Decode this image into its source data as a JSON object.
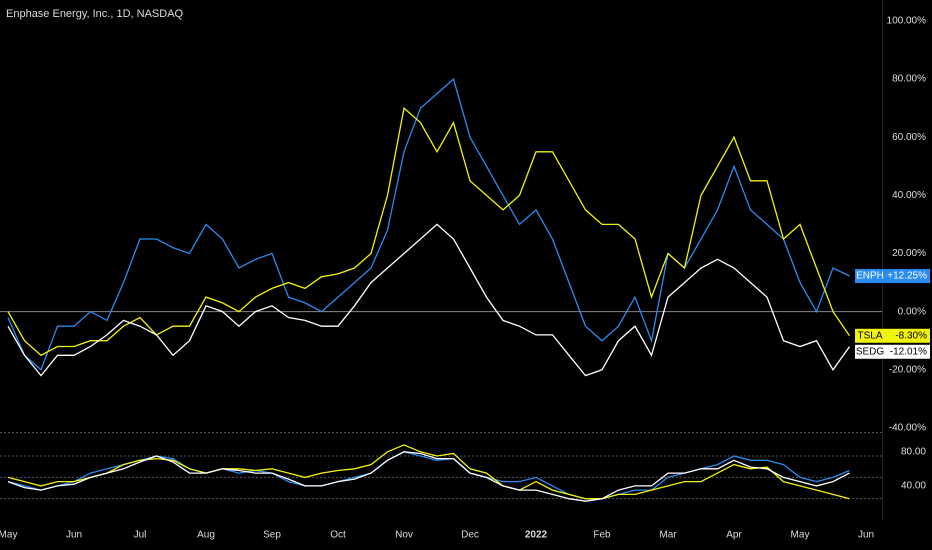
{
  "chart_data": [
    {
      "type": "line",
      "title": "Enphase Energy, Inc., 1D, NASDAQ",
      "categories": [
        "May",
        null,
        null,
        null,
        "Jun",
        null,
        null,
        null,
        "Jul",
        null,
        null,
        null,
        "Aug",
        null,
        null,
        null,
        "Sep",
        null,
        null,
        null,
        "Oct",
        null,
        null,
        null,
        "Nov",
        null,
        null,
        null,
        "Dec",
        null,
        null,
        null,
        "2022",
        null,
        null,
        null,
        "Feb",
        null,
        null,
        null,
        "Mar",
        null,
        null,
        null,
        "Apr",
        null,
        null,
        null,
        "May",
        null,
        null,
        null,
        "Jun"
      ],
      "series": [
        {
          "name": "ENPH",
          "color": "#2a8cf0",
          "values": [
            -2,
            -15,
            -20,
            -5,
            -5,
            0,
            -3,
            10,
            25,
            25,
            22,
            20,
            30,
            25,
            15,
            18,
            20,
            5,
            3,
            0,
            5,
            10,
            15,
            28,
            55,
            70,
            75,
            80,
            60,
            50,
            40,
            30,
            35,
            25,
            10,
            -5,
            -10,
            -5,
            5,
            -10,
            20,
            15,
            25,
            35,
            50,
            35,
            30,
            25,
            10,
            0,
            15,
            12.25,
            null
          ],
          "value_labels": [
            null,
            null,
            null,
            null,
            null,
            null,
            null,
            null,
            null,
            null,
            null,
            null,
            null,
            null,
            null,
            null,
            null,
            null,
            null,
            null,
            null,
            null,
            null,
            null,
            null,
            null,
            null,
            null,
            null,
            null,
            null,
            null,
            null,
            null,
            null,
            null,
            null,
            null,
            null,
            null,
            null,
            null,
            null,
            null,
            null,
            null,
            null,
            null,
            null,
            null,
            null,
            "+12.25%",
            null
          ]
        },
        {
          "name": "TSLA",
          "color": "#f2f20f",
          "values": [
            0,
            -10,
            -15,
            -12,
            -12,
            -10,
            -10,
            -5,
            -2,
            -8,
            -5,
            -5,
            5,
            3,
            0,
            5,
            8,
            10,
            8,
            12,
            13,
            15,
            20,
            40,
            70,
            65,
            55,
            65,
            45,
            40,
            35,
            40,
            55,
            55,
            45,
            35,
            30,
            30,
            25,
            5,
            20,
            15,
            40,
            50,
            60,
            45,
            45,
            25,
            30,
            15,
            0,
            -8.3,
            null
          ],
          "value_labels": [
            null,
            null,
            null,
            null,
            null,
            null,
            null,
            null,
            null,
            null,
            null,
            null,
            null,
            null,
            null,
            null,
            null,
            null,
            null,
            null,
            null,
            null,
            null,
            null,
            null,
            null,
            null,
            null,
            null,
            null,
            null,
            null,
            null,
            null,
            null,
            null,
            null,
            null,
            null,
            null,
            null,
            null,
            null,
            null,
            null,
            null,
            null,
            null,
            null,
            null,
            null,
            "-8.30%",
            null
          ]
        },
        {
          "name": "SEDG",
          "color": "#ffffff",
          "values": [
            -5,
            -15,
            -22,
            -15,
            -15,
            -12,
            -8,
            -3,
            -5,
            -8,
            -15,
            -10,
            2,
            0,
            -5,
            0,
            2,
            -2,
            -3,
            -5,
            -5,
            2,
            10,
            15,
            20,
            25,
            30,
            25,
            15,
            5,
            -3,
            -5,
            -8,
            -8,
            -15,
            -22,
            -20,
            -10,
            -5,
            -15,
            5,
            10,
            15,
            18,
            15,
            10,
            5,
            -10,
            -12,
            -10,
            -20,
            -12.01,
            null
          ],
          "value_labels": [
            null,
            null,
            null,
            null,
            null,
            null,
            null,
            null,
            null,
            null,
            null,
            null,
            null,
            null,
            null,
            null,
            null,
            null,
            null,
            null,
            null,
            null,
            null,
            null,
            null,
            null,
            null,
            null,
            null,
            null,
            null,
            null,
            null,
            null,
            null,
            null,
            null,
            null,
            null,
            null,
            null,
            null,
            null,
            null,
            null,
            null,
            null,
            null,
            null,
            null,
            null,
            "-12.01%",
            null
          ]
        }
      ],
      "ylim": [
        -41.4,
        107.2
      ],
      "yticks": [
        {
          "value": 100,
          "label": "100.00%"
        },
        {
          "value": 80,
          "label": "80.00%"
        },
        {
          "value": 60,
          "label": "60.00%"
        },
        {
          "value": 40,
          "label": "40.00%"
        },
        {
          "value": 20,
          "label": "20.00%"
        },
        {
          "value": 0,
          "label": "0.00%"
        },
        {
          "value": -20,
          "label": "-20.00%"
        },
        {
          "value": -40,
          "label": "-40.00%"
        }
      ],
      "hlines": [
        0
      ]
    },
    {
      "type": "line",
      "series": [
        {
          "color": "#2a8cf0",
          "values": [
            45,
            40,
            35,
            40,
            45,
            55,
            60,
            65,
            70,
            75,
            72,
            60,
            55,
            60,
            55,
            58,
            55,
            45,
            40,
            40,
            45,
            50,
            55,
            70,
            80,
            75,
            70,
            72,
            55,
            50,
            45,
            45,
            50,
            40,
            30,
            25,
            25,
            30,
            35,
            35,
            50,
            55,
            60,
            65,
            75,
            70,
            70,
            65,
            50,
            45,
            50,
            58
          ]
        },
        {
          "color": "#f2f20f",
          "values": [
            50,
            45,
            40,
            45,
            45,
            50,
            55,
            65,
            70,
            72,
            70,
            60,
            55,
            60,
            60,
            58,
            60,
            55,
            50,
            55,
            58,
            60,
            65,
            80,
            88,
            80,
            75,
            78,
            60,
            55,
            40,
            35,
            45,
            35,
            30,
            25,
            25,
            30,
            30,
            35,
            40,
            45,
            45,
            55,
            65,
            60,
            62,
            45,
            40,
            35,
            30,
            25
          ]
        },
        {
          "color": "#ffffff",
          "values": [
            45,
            38,
            35,
            40,
            42,
            50,
            55,
            60,
            68,
            75,
            68,
            55,
            55,
            60,
            58,
            55,
            55,
            48,
            40,
            40,
            45,
            48,
            55,
            70,
            80,
            78,
            72,
            72,
            55,
            50,
            40,
            35,
            35,
            30,
            25,
            22,
            25,
            35,
            40,
            40,
            55,
            55,
            60,
            60,
            70,
            62,
            60,
            50,
            45,
            40,
            45,
            55
          ]
        }
      ],
      "ylim": [
        0,
        102
      ],
      "yticks": [
        {
          "value": 80,
          "label": "80.00"
        },
        {
          "value": 40,
          "label": "40.00"
        }
      ],
      "hlines": [
        75,
        50,
        25
      ]
    }
  ]
}
